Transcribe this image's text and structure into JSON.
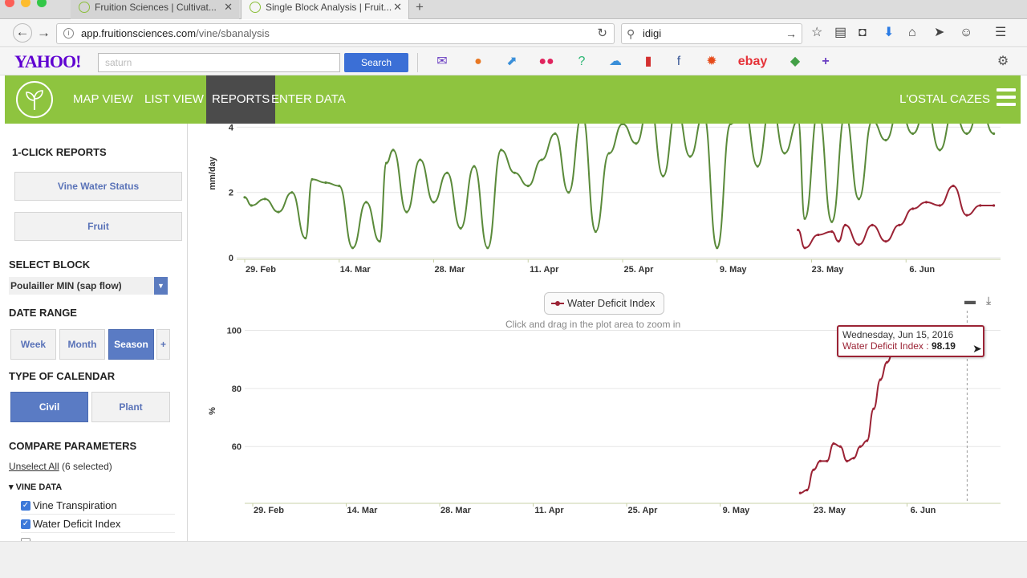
{
  "browser": {
    "tabs": [
      {
        "title": "Fruition Sciences | Cultivat..."
      },
      {
        "title": "Single Block Analysis | Fruit..."
      }
    ],
    "url": {
      "host": "app.fruitionsciences.com",
      "path": "/vine/sbanalysis"
    },
    "search": {
      "value": "idigi"
    }
  },
  "yahoo": {
    "logo": "YAHOO!",
    "input_placeholder": "saturn",
    "search_label": "Search"
  },
  "app": {
    "nav": [
      "MAP VIEW",
      "LIST VIEW",
      "REPORTS",
      "ENTER DATA"
    ],
    "active_nav": "REPORTS",
    "account": "L'OSTAL CAZES",
    "colors": {
      "brand": "#8ec43f",
      "accent": "#5a7bc4",
      "series_green": "#5a8a3a",
      "series_red": "#9b2335"
    }
  },
  "sidebar": {
    "one_click_heading": "1-CLICK REPORTS",
    "reports": [
      "Vine Water Status",
      "Fruit"
    ],
    "select_block_heading": "SELECT BLOCK",
    "selected_block": "Poulailler MIN (sap flow)",
    "date_range_heading": "DATE RANGE",
    "date_ranges": [
      "Week",
      "Month",
      "Season",
      "+"
    ],
    "selected_range": "Season",
    "calendar_heading": "TYPE OF CALENDAR",
    "calendars": [
      "Civil",
      "Plant"
    ],
    "selected_calendar": "Civil",
    "compare_heading": "COMPARE PARAMETERS",
    "unselect_label": "Unselect All",
    "selected_count": "(6 selected)",
    "group_label": "VINE DATA",
    "parameters": [
      {
        "label": "Vine Transpiration",
        "checked": true
      },
      {
        "label": "Water Deficit Index",
        "checked": true
      }
    ]
  },
  "chart_data": [
    {
      "type": "line",
      "ylabel": "mm/day",
      "y_ticks": [
        "0",
        "2",
        "4"
      ],
      "ylim": [
        0,
        4.6
      ],
      "x_ticks": [
        "29. Feb",
        "14. Mar",
        "28. Mar",
        "11. Apr",
        "25. Apr",
        "9. May",
        "23. May",
        "6. Jun"
      ],
      "x_range": [
        "2016-02-29",
        "2016-06-20"
      ],
      "series": [
        {
          "color": "#5a8a3a",
          "x": [
            "2016-02-29",
            "2016-03-01",
            "2016-03-03",
            "2016-03-05",
            "2016-03-07",
            "2016-03-09",
            "2016-03-10",
            "2016-03-12",
            "2016-03-14",
            "2016-03-16",
            "2016-03-18",
            "2016-03-20",
            "2016-03-21",
            "2016-03-22",
            "2016-03-24",
            "2016-03-26",
            "2016-03-28",
            "2016-03-30",
            "2016-04-01",
            "2016-04-03",
            "2016-04-05",
            "2016-04-07",
            "2016-04-09",
            "2016-04-11",
            "2016-04-13",
            "2016-04-15",
            "2016-04-17",
            "2016-04-19",
            "2016-04-21",
            "2016-04-23",
            "2016-04-25",
            "2016-04-27",
            "2016-04-29",
            "2016-05-01",
            "2016-05-03",
            "2016-05-05",
            "2016-05-07",
            "2016-05-09",
            "2016-05-11",
            "2016-05-13",
            "2016-05-15",
            "2016-05-17",
            "2016-05-19",
            "2016-05-21",
            "2016-05-22",
            "2016-05-24",
            "2016-05-26",
            "2016-05-28",
            "2016-05-30",
            "2016-06-01",
            "2016-06-03",
            "2016-06-05",
            "2016-06-07",
            "2016-06-09",
            "2016-06-11",
            "2016-06-13",
            "2016-06-15",
            "2016-06-17",
            "2016-06-19"
          ],
          "values": [
            1.85,
            1.6,
            1.8,
            1.4,
            2.0,
            0.6,
            2.4,
            2.3,
            2.2,
            0.3,
            1.7,
            0.5,
            2.9,
            3.3,
            1.4,
            3.0,
            1.7,
            2.6,
            0.9,
            2.8,
            0.3,
            3.3,
            2.6,
            2.2,
            3.0,
            3.8,
            2.0,
            4.4,
            0.8,
            3.2,
            4.1,
            3.5,
            4.8,
            2.5,
            4.6,
            3.1,
            4.4,
            0.3,
            4.1,
            4.6,
            2.8,
            4.8,
            3.2,
            4.2,
            1.2,
            4.5,
            1.1,
            4.4,
            1.8,
            4.2,
            3.6,
            4.6,
            3.8,
            4.6,
            3.3,
            4.5,
            3.8,
            4.6,
            3.8
          ]
        },
        {
          "color": "#9b2335",
          "x": [
            "2016-05-21",
            "2016-05-22",
            "2016-05-24",
            "2016-05-26",
            "2016-05-27",
            "2016-05-28",
            "2016-05-30",
            "2016-06-01",
            "2016-06-03",
            "2016-06-05",
            "2016-06-07",
            "2016-06-09",
            "2016-06-11",
            "2016-06-13",
            "2016-06-15",
            "2016-06-17",
            "2016-06-19"
          ],
          "values": [
            0.85,
            0.3,
            0.7,
            0.8,
            0.5,
            1.0,
            0.4,
            1.0,
            0.5,
            1.0,
            1.5,
            1.7,
            1.6,
            2.2,
            1.3,
            1.6,
            1.6
          ]
        }
      ]
    },
    {
      "type": "line",
      "title_hint": "Click and drag in the plot area to zoom in",
      "ylabel": "%",
      "y_ticks": [
        "60",
        "80",
        "100"
      ],
      "ylim": [
        41,
        104
      ],
      "x_ticks": [
        "29. Feb",
        "14. Mar",
        "28. Mar",
        "11. Apr",
        "25. Apr",
        "9. May",
        "23. May",
        "6. Jun"
      ],
      "x_range": [
        "2016-02-29",
        "2016-06-20"
      ],
      "legend": "Water Deficit Index",
      "series": [
        {
          "name": "Water Deficit Index",
          "color": "#9b2335",
          "x": [
            "2016-05-21",
            "2016-05-22",
            "2016-05-23",
            "2016-05-24",
            "2016-05-25",
            "2016-05-26",
            "2016-05-27",
            "2016-05-28",
            "2016-05-29",
            "2016-05-30",
            "2016-05-31",
            "2016-06-01",
            "2016-06-02",
            "2016-06-03",
            "2016-06-04",
            "2016-06-05",
            "2016-06-06",
            "2016-06-07",
            "2016-06-08",
            "2016-06-09",
            "2016-06-10",
            "2016-06-11",
            "2016-06-12",
            "2016-06-13",
            "2016-06-14",
            "2016-06-15"
          ],
          "values": [
            44,
            45,
            52,
            55,
            55,
            61,
            60,
            55,
            56,
            60,
            62,
            73,
            83,
            89,
            93,
            95,
            96,
            97,
            97,
            97.5,
            98,
            98,
            97.8,
            98,
            98.1,
            98.19
          ]
        }
      ],
      "tooltip": {
        "date": "Wednesday, Jun 15, 2016",
        "series": "Water Deficit Index",
        "value": "98.19"
      }
    }
  ]
}
